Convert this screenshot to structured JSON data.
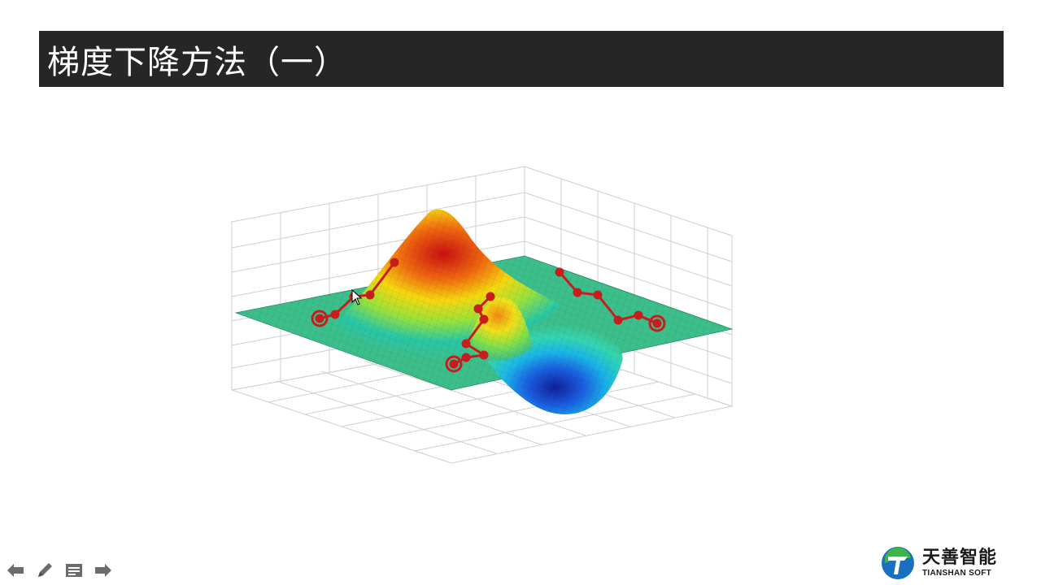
{
  "slide": {
    "title": "梯度下降方法（一）"
  },
  "toolbar": {
    "items": [
      {
        "name": "previous-arrow-icon"
      },
      {
        "name": "pen-icon"
      },
      {
        "name": "slides-menu-icon"
      },
      {
        "name": "next-arrow-icon"
      }
    ]
  },
  "logo": {
    "cn": "天善智能",
    "en": "TIANSHAN SOFT"
  },
  "colors": {
    "title_bg": "#262626",
    "plane": "#3dbf8c",
    "path": "#c81d1d"
  }
}
